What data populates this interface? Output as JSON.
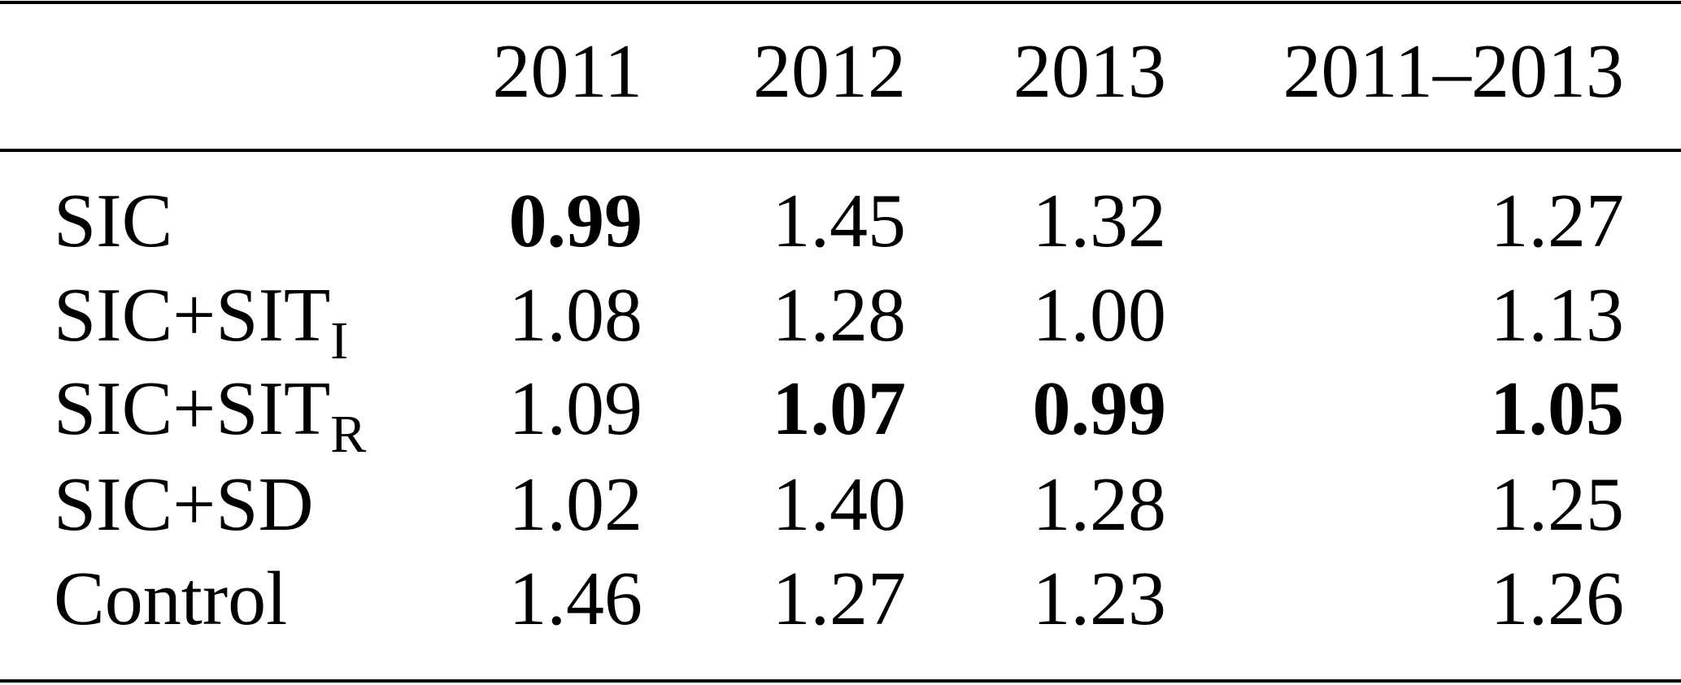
{
  "table": {
    "header": [
      "2011",
      "2012",
      "2013",
      "2011–2013"
    ],
    "rows": [
      {
        "label": "SIC",
        "values": [
          "0.99",
          "1.45",
          "1.32",
          "1.27"
        ],
        "bold": [
          true,
          false,
          false,
          false
        ]
      },
      {
        "label": "SIC+SIT",
        "label_sub": "I",
        "values": [
          "1.08",
          "1.28",
          "1.00",
          "1.13"
        ],
        "bold": [
          false,
          false,
          false,
          false
        ]
      },
      {
        "label": "SIC+SIT",
        "label_sub": "R",
        "values": [
          "1.09",
          "1.07",
          "0.99",
          "1.05"
        ],
        "bold": [
          false,
          true,
          true,
          true
        ]
      },
      {
        "label": "SIC+SD",
        "values": [
          "1.02",
          "1.40",
          "1.28",
          "1.25"
        ],
        "bold": [
          false,
          false,
          false,
          false
        ]
      },
      {
        "label": "Control",
        "values": [
          "1.46",
          "1.27",
          "1.23",
          "1.26"
        ],
        "bold": [
          false,
          false,
          false,
          false
        ]
      }
    ]
  }
}
